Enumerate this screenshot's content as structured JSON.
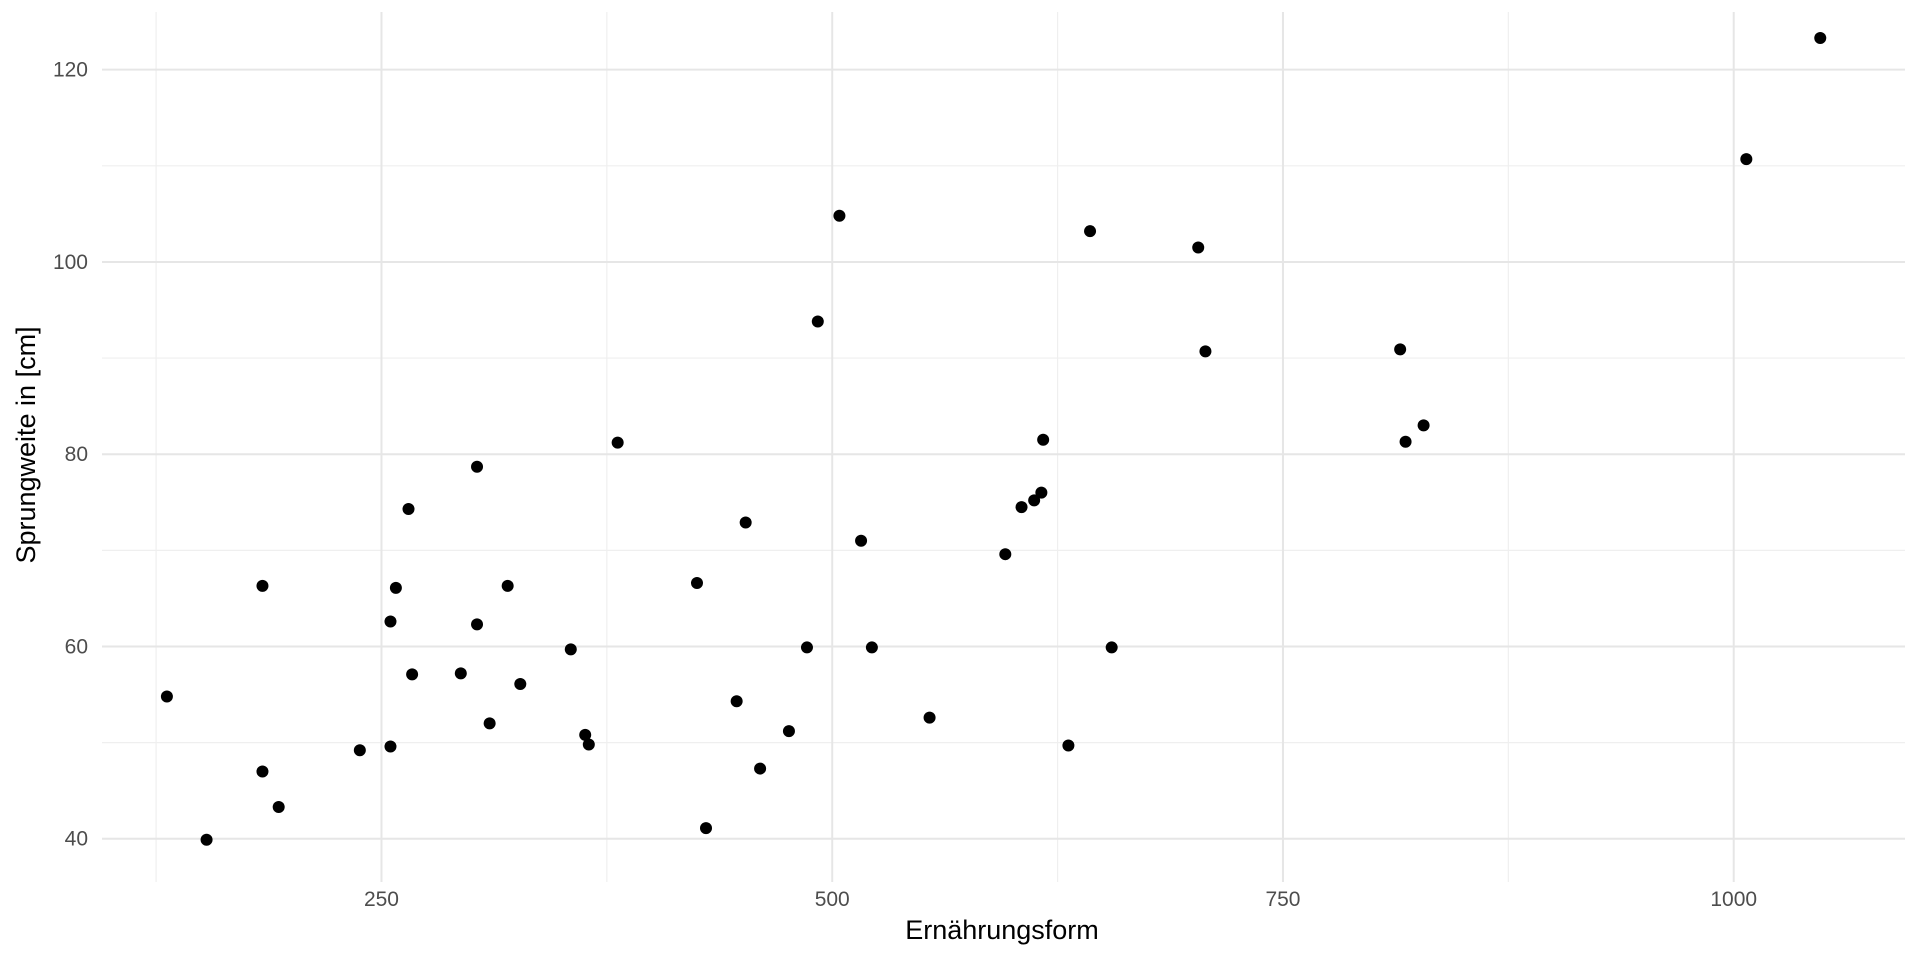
{
  "chart_data": {
    "type": "scatter",
    "title": "",
    "xlabel": "Ernährungsform",
    "ylabel": "Sprungweite in [cm]",
    "xlim": [
      95,
      1095
    ],
    "ylim": [
      35.5,
      126
    ],
    "x_ticks": [
      250,
      500,
      750,
      1000
    ],
    "y_ticks": [
      40,
      60,
      80,
      100,
      120
    ],
    "x_minor": [
      125,
      375,
      625,
      875
    ],
    "y_minor": [
      50,
      70,
      90,
      110
    ],
    "grid": true,
    "legend": "none",
    "point_color": "#000000",
    "points": [
      {
        "x": 131,
        "y": 54.8
      },
      {
        "x": 153,
        "y": 39.9
      },
      {
        "x": 184,
        "y": 66.3
      },
      {
        "x": 184,
        "y": 47.0
      },
      {
        "x": 193,
        "y": 43.3
      },
      {
        "x": 238,
        "y": 49.2
      },
      {
        "x": 255,
        "y": 62.6
      },
      {
        "x": 255,
        "y": 49.6
      },
      {
        "x": 258,
        "y": 66.1
      },
      {
        "x": 265,
        "y": 74.3
      },
      {
        "x": 267,
        "y": 57.1
      },
      {
        "x": 294,
        "y": 57.2
      },
      {
        "x": 303,
        "y": 78.7
      },
      {
        "x": 303,
        "y": 62.3
      },
      {
        "x": 310,
        "y": 52.0
      },
      {
        "x": 320,
        "y": 66.3
      },
      {
        "x": 327,
        "y": 56.1
      },
      {
        "x": 355,
        "y": 59.7
      },
      {
        "x": 363,
        "y": 50.8
      },
      {
        "x": 365,
        "y": 49.8
      },
      {
        "x": 381,
        "y": 81.2
      },
      {
        "x": 425,
        "y": 66.6
      },
      {
        "x": 430,
        "y": 41.1
      },
      {
        "x": 447,
        "y": 54.3
      },
      {
        "x": 452,
        "y": 72.9
      },
      {
        "x": 460,
        "y": 47.3
      },
      {
        "x": 476,
        "y": 51.2
      },
      {
        "x": 486,
        "y": 59.9
      },
      {
        "x": 492,
        "y": 93.8
      },
      {
        "x": 504,
        "y": 104.8
      },
      {
        "x": 516,
        "y": 71.0
      },
      {
        "x": 522,
        "y": 59.9
      },
      {
        "x": 554,
        "y": 52.6
      },
      {
        "x": 596,
        "y": 69.6
      },
      {
        "x": 605,
        "y": 74.5
      },
      {
        "x": 612,
        "y": 75.2
      },
      {
        "x": 616,
        "y": 76.0
      },
      {
        "x": 617,
        "y": 81.5
      },
      {
        "x": 631,
        "y": 49.7
      },
      {
        "x": 643,
        "y": 103.2
      },
      {
        "x": 655,
        "y": 59.9
      },
      {
        "x": 703,
        "y": 101.5
      },
      {
        "x": 707,
        "y": 90.7
      },
      {
        "x": 815,
        "y": 90.9
      },
      {
        "x": 818,
        "y": 81.3
      },
      {
        "x": 828,
        "y": 83.0
      },
      {
        "x": 1007,
        "y": 110.7
      },
      {
        "x": 1048,
        "y": 123.3
      }
    ]
  }
}
